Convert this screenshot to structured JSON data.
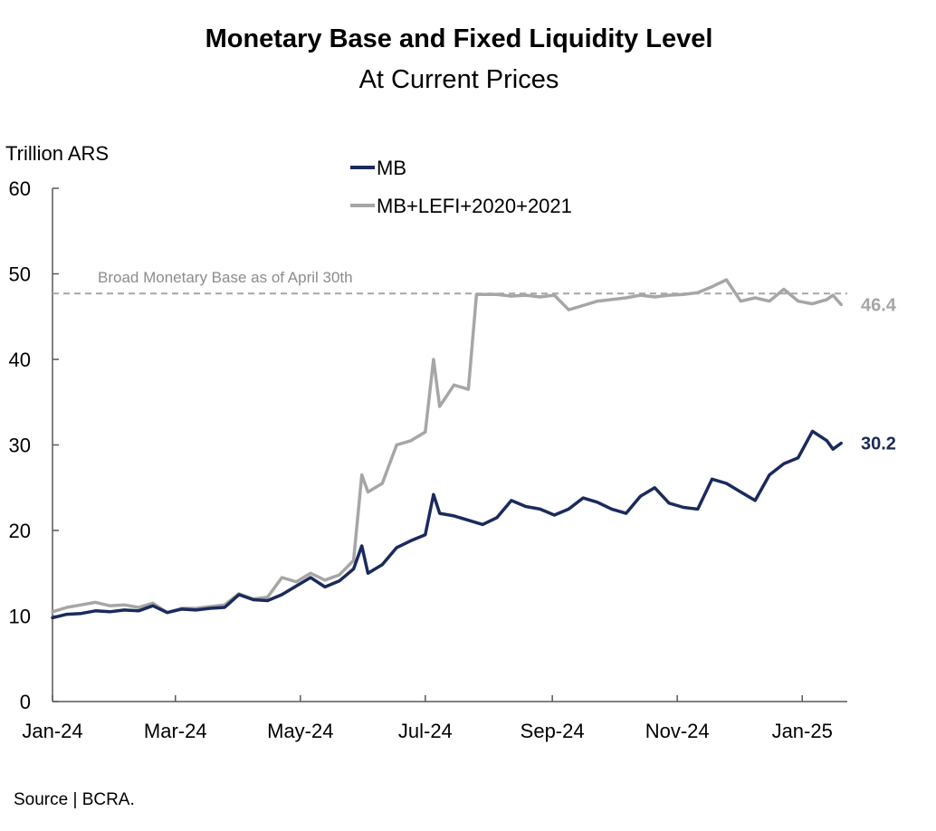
{
  "chart_data": {
    "type": "line",
    "title": "Monetary Base and Fixed Liquidity Level",
    "subtitle": "At Current Prices",
    "ylabel": "Trillion ARS",
    "xlabel": "",
    "ylim": [
      0,
      60
    ],
    "yticks": [
      "0",
      "10",
      "20",
      "30",
      "40",
      "50",
      "60"
    ],
    "xticks": [
      "Jan-24",
      "Mar-24",
      "May-24",
      "Jul-24",
      "Sep-24",
      "Nov-24",
      "Jan-25"
    ],
    "grid": false,
    "legend_position": "top-center",
    "series": [
      {
        "name": "MB",
        "color": "#1a2a5c",
        "end_label": "30.2",
        "points": [
          [
            "2024-01-01",
            9.8
          ],
          [
            "2024-01-08",
            10.2
          ],
          [
            "2024-01-15",
            10.3
          ],
          [
            "2024-01-22",
            10.6
          ],
          [
            "2024-01-29",
            10.5
          ],
          [
            "2024-02-05",
            10.7
          ],
          [
            "2024-02-12",
            10.6
          ],
          [
            "2024-02-19",
            11.2
          ],
          [
            "2024-02-26",
            10.4
          ],
          [
            "2024-03-04",
            10.8
          ],
          [
            "2024-03-11",
            10.7
          ],
          [
            "2024-03-18",
            10.9
          ],
          [
            "2024-03-25",
            11.0
          ],
          [
            "2024-04-01",
            12.5
          ],
          [
            "2024-04-08",
            11.9
          ],
          [
            "2024-04-15",
            11.8
          ],
          [
            "2024-04-22",
            12.5
          ],
          [
            "2024-04-29",
            13.5
          ],
          [
            "2024-05-06",
            14.5
          ],
          [
            "2024-05-13",
            13.4
          ],
          [
            "2024-05-20",
            14.1
          ],
          [
            "2024-05-27",
            15.5
          ],
          [
            "2024-05-31",
            18.2
          ],
          [
            "2024-06-03",
            15.0
          ],
          [
            "2024-06-10",
            16.0
          ],
          [
            "2024-06-17",
            18.0
          ],
          [
            "2024-06-24",
            18.8
          ],
          [
            "2024-07-01",
            19.5
          ],
          [
            "2024-07-05",
            24.2
          ],
          [
            "2024-07-08",
            22.0
          ],
          [
            "2024-07-15",
            21.7
          ],
          [
            "2024-07-22",
            21.2
          ],
          [
            "2024-07-29",
            20.7
          ],
          [
            "2024-08-05",
            21.5
          ],
          [
            "2024-08-12",
            23.5
          ],
          [
            "2024-08-19",
            22.8
          ],
          [
            "2024-08-26",
            22.5
          ],
          [
            "2024-09-02",
            21.8
          ],
          [
            "2024-09-09",
            22.5
          ],
          [
            "2024-09-16",
            23.8
          ],
          [
            "2024-09-23",
            23.3
          ],
          [
            "2024-09-30",
            22.5
          ],
          [
            "2024-10-07",
            22.0
          ],
          [
            "2024-10-14",
            24.0
          ],
          [
            "2024-10-21",
            25.0
          ],
          [
            "2024-10-28",
            23.2
          ],
          [
            "2024-11-04",
            22.7
          ],
          [
            "2024-11-11",
            22.5
          ],
          [
            "2024-11-18",
            26.0
          ],
          [
            "2024-11-25",
            25.5
          ],
          [
            "2024-12-02",
            24.5
          ],
          [
            "2024-12-09",
            23.5
          ],
          [
            "2024-12-16",
            26.5
          ],
          [
            "2024-12-23",
            27.8
          ],
          [
            "2024-12-30",
            28.5
          ],
          [
            "2025-01-06",
            31.6
          ],
          [
            "2025-01-13",
            30.5
          ],
          [
            "2025-01-16",
            29.5
          ],
          [
            "2025-01-20",
            30.2
          ]
        ]
      },
      {
        "name": "MB+LEFI+2020+2021",
        "color": "#a6a6a6",
        "end_label": "46.4",
        "points": [
          [
            "2024-01-01",
            10.5
          ],
          [
            "2024-01-08",
            11.0
          ],
          [
            "2024-01-15",
            11.3
          ],
          [
            "2024-01-22",
            11.6
          ],
          [
            "2024-01-29",
            11.2
          ],
          [
            "2024-02-05",
            11.3
          ],
          [
            "2024-02-12",
            11.0
          ],
          [
            "2024-02-19",
            11.5
          ],
          [
            "2024-02-26",
            10.4
          ],
          [
            "2024-03-04",
            10.9
          ],
          [
            "2024-03-11",
            10.9
          ],
          [
            "2024-03-18",
            11.1
          ],
          [
            "2024-03-25",
            11.3
          ],
          [
            "2024-04-01",
            12.6
          ],
          [
            "2024-04-08",
            12.0
          ],
          [
            "2024-04-15",
            12.2
          ],
          [
            "2024-04-22",
            14.5
          ],
          [
            "2024-04-29",
            14.0
          ],
          [
            "2024-05-06",
            15.0
          ],
          [
            "2024-05-13",
            14.2
          ],
          [
            "2024-05-20",
            14.8
          ],
          [
            "2024-05-27",
            16.5
          ],
          [
            "2024-05-31",
            26.5
          ],
          [
            "2024-06-03",
            24.5
          ],
          [
            "2024-06-10",
            25.5
          ],
          [
            "2024-06-17",
            30.0
          ],
          [
            "2024-06-24",
            30.5
          ],
          [
            "2024-07-01",
            31.5
          ],
          [
            "2024-07-05",
            40.0
          ],
          [
            "2024-07-08",
            34.5
          ],
          [
            "2024-07-15",
            37.0
          ],
          [
            "2024-07-22",
            36.5
          ],
          [
            "2024-07-26",
            47.6
          ],
          [
            "2024-08-05",
            47.6
          ],
          [
            "2024-08-12",
            47.4
          ],
          [
            "2024-08-19",
            47.5
          ],
          [
            "2024-08-26",
            47.3
          ],
          [
            "2024-09-02",
            47.5
          ],
          [
            "2024-09-09",
            45.8
          ],
          [
            "2024-09-16",
            46.3
          ],
          [
            "2024-09-23",
            46.8
          ],
          [
            "2024-09-30",
            47.0
          ],
          [
            "2024-10-07",
            47.2
          ],
          [
            "2024-10-14",
            47.5
          ],
          [
            "2024-10-21",
            47.3
          ],
          [
            "2024-10-28",
            47.5
          ],
          [
            "2024-11-04",
            47.6
          ],
          [
            "2024-11-11",
            47.8
          ],
          [
            "2024-11-18",
            48.5
          ],
          [
            "2024-11-25",
            49.3
          ],
          [
            "2024-12-02",
            46.8
          ],
          [
            "2024-12-09",
            47.2
          ],
          [
            "2024-12-16",
            46.8
          ],
          [
            "2024-12-23",
            48.2
          ],
          [
            "2024-12-30",
            46.8
          ],
          [
            "2025-01-06",
            46.5
          ],
          [
            "2025-01-13",
            47.0
          ],
          [
            "2025-01-16",
            47.5
          ],
          [
            "2025-01-20",
            46.4
          ]
        ]
      }
    ],
    "reference_line": {
      "label": "Broad Monetary Base as of April 30th",
      "value": 47.7,
      "color": "#a6a6a6",
      "style": "dashed"
    }
  },
  "footer": {
    "source": "Source | BCRA."
  }
}
